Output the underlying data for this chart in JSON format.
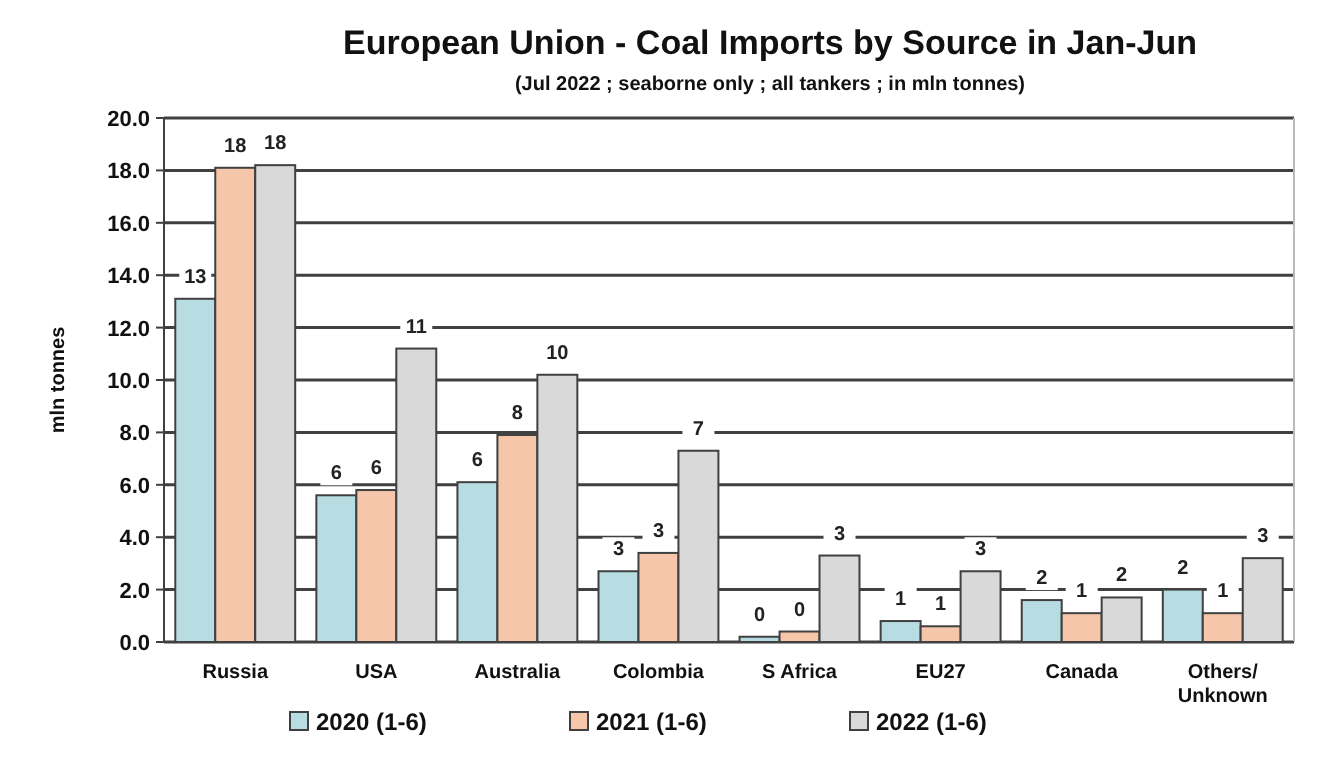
{
  "chart_data": {
    "type": "bar",
    "title": "European Union - Coal Imports by Source in Jan-Jun",
    "subtitle": "(Jul 2022 ; seaborne only ; all tankers ; in mln tonnes)",
    "ylabel": "mln tonnes",
    "categories": [
      "Russia",
      "USA",
      "Australia",
      "Colombia",
      "S Africa",
      "EU27",
      "Canada",
      "Others/\nUnknown"
    ],
    "series": [
      {
        "name": "2020 (1-6)",
        "color": "#b7dde2",
        "values": [
          13.1,
          5.6,
          6.1,
          2.7,
          0.2,
          0.8,
          1.6,
          2.0
        ],
        "value_labels": [
          "13",
          "6",
          "6",
          "3",
          "0",
          "1",
          "2",
          "2"
        ]
      },
      {
        "name": "2021 (1-6)",
        "color": "#f5c6aa",
        "values": [
          18.1,
          5.8,
          7.9,
          3.4,
          0.4,
          0.6,
          1.1,
          1.1
        ],
        "value_labels": [
          "18",
          "6",
          "8",
          "3",
          "0",
          "1",
          "1",
          "1"
        ]
      },
      {
        "name": "2022 (1-6)",
        "color": "#d9d9d9",
        "values": [
          18.2,
          11.2,
          10.2,
          7.3,
          3.3,
          2.7,
          1.7,
          3.2
        ],
        "value_labels": [
          "18",
          "11",
          "10",
          "7",
          "3",
          "3",
          "2",
          "3"
        ]
      }
    ],
    "ylim": [
      0,
      20
    ],
    "yticks": [
      {
        "value": 0,
        "label": "0.0"
      },
      {
        "value": 2,
        "label": "2.0"
      },
      {
        "value": 4,
        "label": "4.0"
      },
      {
        "value": 6,
        "label": "6.0"
      },
      {
        "value": 8,
        "label": "8.0"
      },
      {
        "value": 10,
        "label": "10.0"
      },
      {
        "value": 12,
        "label": "12.0"
      },
      {
        "value": 14,
        "label": "14.0"
      },
      {
        "value": 16,
        "label": "16.0"
      },
      {
        "value": 18,
        "label": "18.0"
      },
      {
        "value": 20,
        "label": "20.0"
      }
    ],
    "grid": "y",
    "legend": "bottom"
  }
}
